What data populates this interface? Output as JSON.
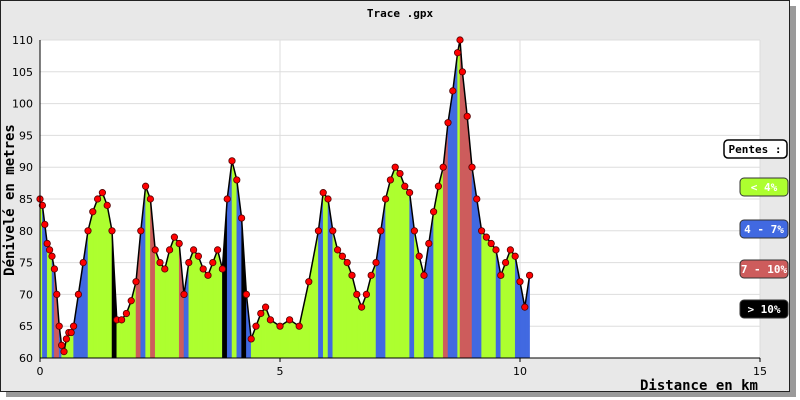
{
  "chart_data": {
    "type": "area",
    "title": "Trace .gpx",
    "xlabel": "Distance en km",
    "ylabel": "Dénivelé en metres",
    "xlim": [
      0,
      15
    ],
    "ylim": [
      60,
      110
    ],
    "x_ticks": [
      "0",
      "5",
      "10",
      "15"
    ],
    "y_ticks": [
      "60",
      "65",
      "70",
      "75",
      "80",
      "85",
      "90",
      "95",
      "100",
      "105",
      "110"
    ],
    "grid": true,
    "legend_position": "right",
    "legend_title": "Pentes :",
    "legend": [
      {
        "label": "< 4%",
        "color": "#adff2f",
        "text_color": "#ffffff"
      },
      {
        "label": "4 - 7%",
        "color": "#4169e1",
        "text_color": "#ffffff"
      },
      {
        "label": "7 - 10%",
        "color": "#cd5c5c",
        "text_color": "#ffffff"
      },
      {
        "label": "> 10%",
        "color": "#000000",
        "text_color": "#ffffff"
      }
    ],
    "series": [
      {
        "x": [
          0.0,
          0.05,
          0.1,
          0.15,
          0.2,
          0.25,
          0.3,
          0.35,
          0.4,
          0.45,
          0.5,
          0.55,
          0.6,
          0.65,
          0.7,
          0.8,
          0.9,
          1.0,
          1.1,
          1.2,
          1.3,
          1.4,
          1.5,
          1.6,
          1.7,
          1.8,
          1.9,
          2.0,
          2.1,
          2.2,
          2.3,
          2.4,
          2.5,
          2.6,
          2.7,
          2.8,
          2.9,
          3.0,
          3.1,
          3.2,
          3.3,
          3.4,
          3.5,
          3.6,
          3.7,
          3.8,
          3.9,
          4.0,
          4.1,
          4.2,
          4.3,
          4.4,
          4.5,
          4.6,
          4.7,
          4.8,
          5.0,
          5.2,
          5.4,
          5.6,
          5.8,
          5.9,
          6.0,
          6.1,
          6.2,
          6.3,
          6.4,
          6.5,
          6.6,
          6.7,
          6.8,
          6.9,
          7.0,
          7.1,
          7.2,
          7.3,
          7.4,
          7.5,
          7.6,
          7.7,
          7.8,
          7.9,
          8.0,
          8.1,
          8.2,
          8.3,
          8.4,
          8.5,
          8.6,
          8.7,
          8.75,
          8.8,
          8.9,
          9.0,
          9.1,
          9.2,
          9.3,
          9.4,
          9.5,
          9.6,
          9.7,
          9.8,
          9.9,
          10.0,
          10.1,
          10.2
        ],
        "y": [
          85,
          84,
          81,
          78,
          77,
          76,
          74,
          70,
          65,
          62,
          61,
          63,
          64,
          64,
          65,
          70,
          75,
          80,
          83,
          85,
          86,
          84,
          80,
          66,
          66,
          67,
          69,
          72,
          80,
          87,
          85,
          77,
          75,
          74,
          77,
          79,
          78,
          70,
          75,
          77,
          76,
          74,
          73,
          75,
          77,
          74,
          85,
          91,
          88,
          82,
          70,
          63,
          65,
          67,
          68,
          66,
          65,
          66,
          65,
          72,
          80,
          86,
          85,
          80,
          77,
          76,
          75,
          73,
          70,
          68,
          70,
          73,
          75,
          80,
          85,
          88,
          90,
          89,
          87,
          86,
          80,
          76,
          73,
          78,
          83,
          87,
          90,
          97,
          102,
          108,
          110,
          105,
          98,
          90,
          85,
          80,
          79,
          78,
          77,
          73,
          75,
          77,
          76,
          72,
          68,
          73
        ]
      }
    ]
  }
}
